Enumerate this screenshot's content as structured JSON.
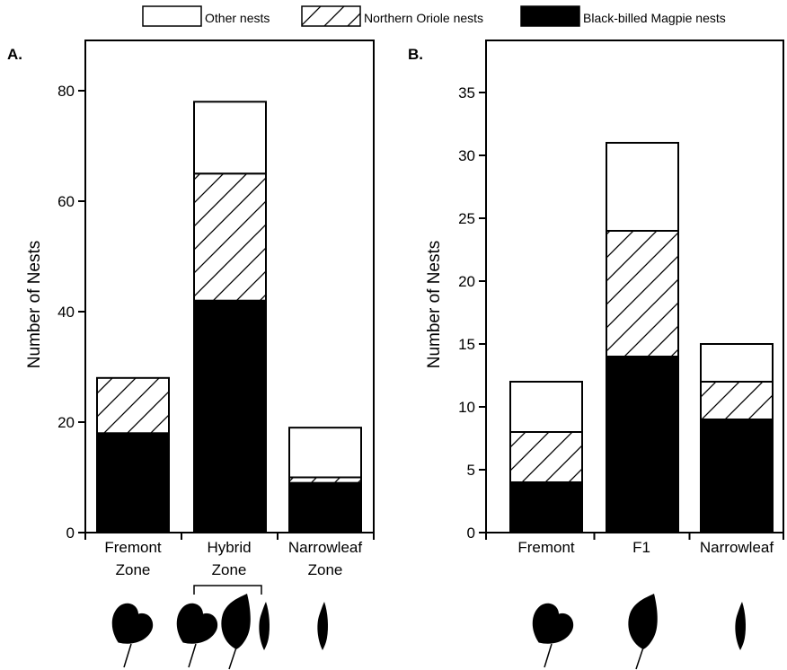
{
  "legend": {
    "items": [
      {
        "label": "Other nests",
        "pattern": "white"
      },
      {
        "label": "Northern Oriole nests",
        "pattern": "hatch"
      },
      {
        "label": "Black-billed Magpie nests",
        "pattern": "black"
      }
    ]
  },
  "colors": {
    "ink": "#000000",
    "paper": "#ffffff"
  },
  "chart_data": [
    {
      "type": "bar",
      "stacked": true,
      "panel_label": "A.",
      "ylabel": "Number of Nests",
      "ylim": [
        0,
        85
      ],
      "yticks": [
        "0",
        "20",
        "40",
        "60",
        "80"
      ],
      "categories": [
        "Fremont Zone",
        "Hybrid Zone",
        "Narrowleaf Zone"
      ],
      "category_lines": [
        [
          "Fremont",
          "Zone"
        ],
        [
          "Hybrid",
          "Zone"
        ],
        [
          "Narrowleaf",
          "Zone"
        ]
      ],
      "series": [
        {
          "name": "Black-billed Magpie nests",
          "pattern": "black",
          "values": [
            18,
            42,
            9
          ]
        },
        {
          "name": "Northern Oriole nests",
          "pattern": "hatch",
          "values": [
            10,
            23,
            1
          ]
        },
        {
          "name": "Other nests",
          "pattern": "white",
          "values": [
            0,
            13,
            9
          ]
        }
      ],
      "leaf_icons": [
        "broad-leaf-icon",
        "broad-leaf-icon",
        "intermediate-leaf-icon",
        "narrow-leaf-icon",
        "narrow-leaf-icon"
      ]
    },
    {
      "type": "bar",
      "stacked": true,
      "panel_label": "B.",
      "ylabel": "Number of Nests",
      "ylim": [
        0,
        38
      ],
      "yticks": [
        "0",
        "5",
        "10",
        "15",
        "20",
        "25",
        "30",
        "35"
      ],
      "categories": [
        "Fremont",
        "F1",
        "Narrowleaf"
      ],
      "category_lines": [
        [
          "Fremont"
        ],
        [
          "F1"
        ],
        [
          "Narrowleaf"
        ]
      ],
      "series": [
        {
          "name": "Black-billed Magpie nests",
          "pattern": "black",
          "values": [
            4,
            14,
            9
          ]
        },
        {
          "name": "Northern Oriole nests",
          "pattern": "hatch",
          "values": [
            4,
            10,
            3
          ]
        },
        {
          "name": "Other nests",
          "pattern": "white",
          "values": [
            4,
            7,
            3
          ]
        }
      ],
      "leaf_icons": [
        "broad-leaf-icon",
        "intermediate-leaf-icon",
        "narrow-leaf-icon"
      ]
    }
  ]
}
